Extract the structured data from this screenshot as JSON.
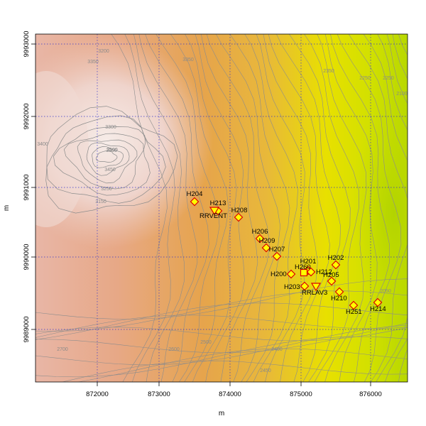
{
  "map": {
    "x_axis_title": "m",
    "y_axis_title": "m",
    "x_ticks": [
      "872000",
      "873000",
      "874000",
      "875000",
      "876000"
    ],
    "y_ticks": [
      "9989000",
      "9990000",
      "9991000",
      "9992000",
      "9993000"
    ],
    "contour_labels": [
      "3200",
      "3350",
      "3350",
      "3300",
      "3400",
      "3300",
      "3500",
      "3450",
      "3250",
      "3150",
      "3350",
      "2350",
      "2250",
      "2250",
      "2100",
      "2050",
      "2700",
      "2600",
      "2500",
      "2400",
      "2450"
    ],
    "stations": [
      {
        "label": "H204",
        "shape": "diamond"
      },
      {
        "label": "H213",
        "shape": "diamond"
      },
      {
        "label": "RRVENT",
        "shape": "triangle-down"
      },
      {
        "label": "H208",
        "shape": "diamond"
      },
      {
        "label": "H206",
        "shape": "diamond"
      },
      {
        "label": "H209",
        "shape": "diamond"
      },
      {
        "label": "H207",
        "shape": "diamond"
      },
      {
        "label": "H201",
        "shape": "diamond"
      },
      {
        "label": "H202",
        "shape": "diamond"
      },
      {
        "label": "H260",
        "shape": "square"
      },
      {
        "label": "H212",
        "shape": "diamond"
      },
      {
        "label": "H200",
        "shape": "diamond"
      },
      {
        "label": "H205",
        "shape": "diamond"
      },
      {
        "label": "H203",
        "shape": "diamond"
      },
      {
        "label": "RRLAV3",
        "shape": "triangle-down"
      },
      {
        "label": "H210",
        "shape": "diamond"
      },
      {
        "label": "H251",
        "shape": "diamond"
      },
      {
        "label": "H214",
        "shape": "diamond"
      }
    ],
    "colors": {
      "marker_fill": "#ffff00",
      "marker_stroke": "#dd0000",
      "grid": "#3333cc",
      "contour": "#8c8c8c",
      "terrain_peak": "#f2e2e0",
      "terrain_mid": "#e6aa58",
      "terrain_low": "#e8e800",
      "terrain_lowest": "#b6d600"
    }
  }
}
